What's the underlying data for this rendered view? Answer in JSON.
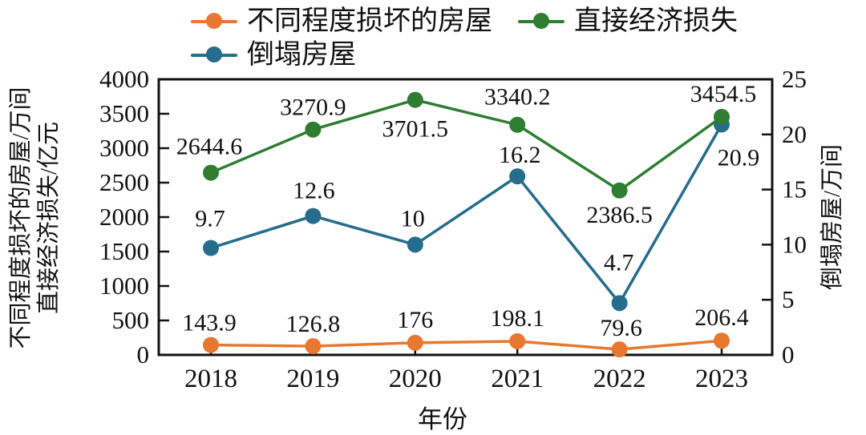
{
  "figure": {
    "background": "#ffffff",
    "text_color": "#111111",
    "axis_color": "#111111"
  },
  "chart_data": {
    "type": "line",
    "title": "",
    "x": {
      "title": "年份",
      "categories": [
        "2018",
        "2019",
        "2020",
        "2021",
        "2022",
        "2023"
      ]
    },
    "y_left": {
      "title_lines": [
        "不同程度损坏的房屋/万间",
        "直接经济损失/亿元"
      ],
      "min": 0,
      "max": 4000,
      "step": 500,
      "ticks": [
        "0",
        "500",
        "1000",
        "1500",
        "2000",
        "2500",
        "3000",
        "3500",
        "4000"
      ]
    },
    "y_right": {
      "title": "倒塌房屋/万间",
      "min": 0,
      "max": 25,
      "step": 5,
      "ticks": [
        "0",
        "5",
        "10",
        "15",
        "20",
        "25"
      ]
    },
    "legend": {
      "position": "top",
      "rows": [
        [
          0,
          1
        ],
        [
          2
        ]
      ]
    },
    "series": [
      {
        "name": "不同程度损坏的房屋",
        "color": "#E8772F",
        "axis": "left",
        "values": [
          143.9,
          126.8,
          176,
          198.1,
          79.6,
          206.4
        ],
        "point_labels": [
          "143.9",
          "126.8",
          "176",
          "198.1",
          "79.6",
          "206.4"
        ]
      },
      {
        "name": "直接经济损失",
        "color": "#2E7D32",
        "axis": "left",
        "values": [
          2644.6,
          3270.9,
          3701.5,
          3340.2,
          2386.5,
          3454.5
        ],
        "point_labels": [
          "2644.6",
          "3270.9",
          "3701.5",
          "3340.2",
          "2386.5",
          "3454.5"
        ]
      },
      {
        "name": "倒塌房屋",
        "color": "#256C8D",
        "axis": "right",
        "values": [
          9.7,
          12.6,
          10,
          16.2,
          4.7,
          20.9
        ],
        "point_labels": [
          "9.7",
          "12.6",
          "10",
          "16.2",
          "4.7",
          "20.9"
        ]
      }
    ]
  }
}
